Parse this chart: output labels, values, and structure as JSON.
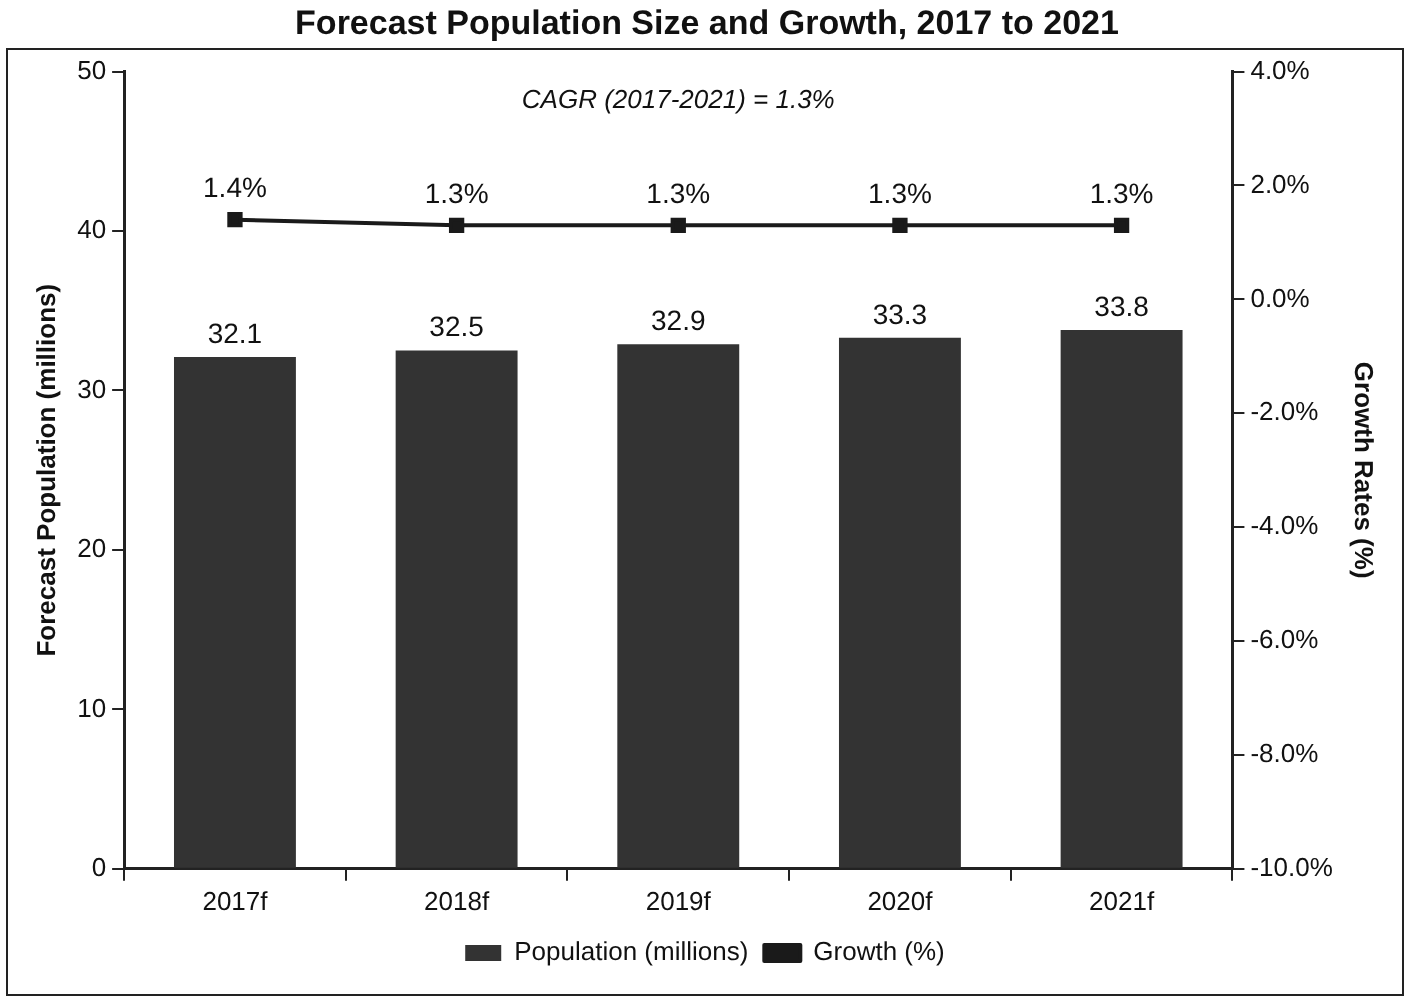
{
  "chart_data": {
    "type": "bar",
    "title": "Forecast Population Size and Growth, 2017 to 2021",
    "ylabel": "Forecast Population (millions)",
    "y2label": "Growth Rates (%)",
    "annotations": [
      "CAGR (2017-2021) = 1.3%"
    ],
    "categories": [
      "2017f",
      "2018f",
      "2019f",
      "2020f",
      "2021f"
    ],
    "series": [
      {
        "name": "Population (millions)",
        "color": "#333333",
        "values": [
          32.1,
          32.5,
          32.9,
          33.3,
          33.8
        ],
        "value_labels": [
          "32.1",
          "32.5",
          "32.9",
          "33.3",
          "33.8"
        ]
      },
      {
        "name": "Growth (%)",
        "type": "line",
        "axis": "y2",
        "color": "#1a1a1a",
        "values": [
          1.4,
          1.3,
          1.3,
          1.3,
          1.3
        ],
        "value_labels": [
          "1.4%",
          "1.3%",
          "1.3%",
          "1.3%",
          "1.3%"
        ]
      }
    ],
    "ylim": [
      0,
      50
    ],
    "yticks": [
      0,
      10,
      20,
      30,
      40,
      50
    ],
    "y2lim": [
      -10,
      4
    ],
    "y2ticks": [
      {
        "value": -10,
        "label": "-10.0%"
      },
      {
        "value": -8,
        "label": "-8.0%"
      },
      {
        "value": -6,
        "label": "-6.0%"
      },
      {
        "value": -4,
        "label": "-4.0%"
      },
      {
        "value": -2,
        "label": "-2.0%"
      },
      {
        "value": 0,
        "label": "0.0%"
      },
      {
        "value": 2,
        "label": "2.0%"
      },
      {
        "value": 4,
        "label": "4.0%"
      }
    ],
    "grid": false,
    "legend": "bottom",
    "marker": "square",
    "line_style": "solid"
  }
}
